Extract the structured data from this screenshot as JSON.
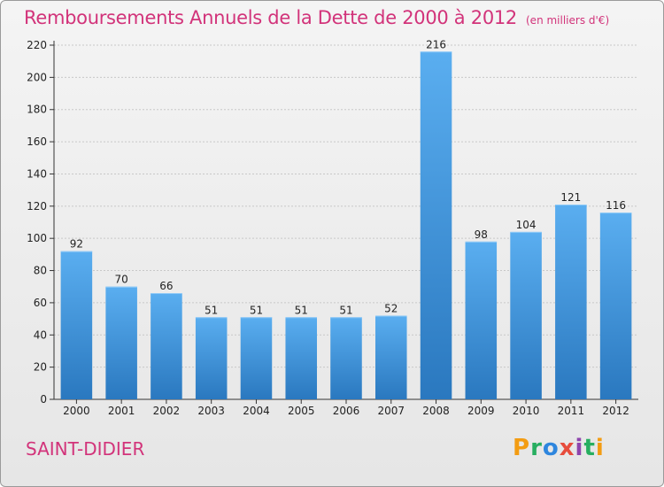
{
  "chart_data": {
    "type": "bar",
    "title": "Remboursements Annuels de la Dette de 2000 à 2012",
    "subtitle": "(en milliers d'€)",
    "categories": [
      "2000",
      "2001",
      "2002",
      "2003",
      "2004",
      "2005",
      "2006",
      "2007",
      "2008",
      "2009",
      "2010",
      "2011",
      "2012"
    ],
    "values": [
      92,
      70,
      66,
      51,
      51,
      51,
      51,
      52,
      216,
      98,
      104,
      121,
      116
    ],
    "ylim": [
      0,
      220
    ],
    "yticks": [
      0,
      20,
      40,
      60,
      80,
      100,
      120,
      140,
      160,
      180,
      200,
      220
    ],
    "grid": true,
    "bar_color": "#3f93d5"
  },
  "footer": {
    "commune": "SAINT-DIDIER",
    "logo_letters": [
      "P",
      "r",
      "o",
      "x",
      "i",
      "t",
      "i"
    ],
    "logo_colors": [
      "#f39c12",
      "#27ae60",
      "#2e86de",
      "#e74c3c",
      "#8e44ad",
      "#27ae60",
      "#f39c12"
    ]
  },
  "colors": {
    "title": "#d2337a",
    "grid": "#c8c8c8"
  }
}
